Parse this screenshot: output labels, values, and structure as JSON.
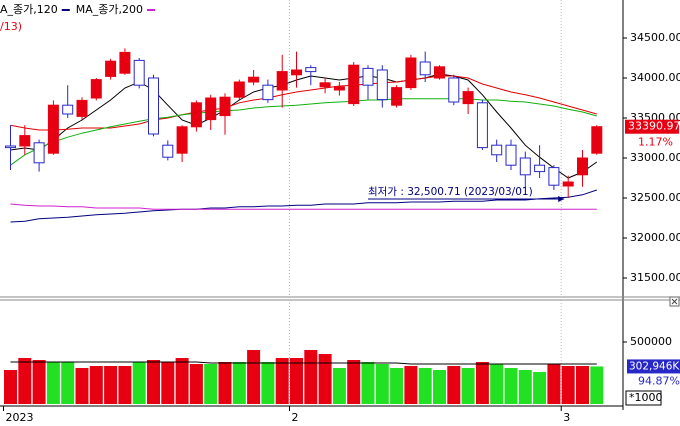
{
  "chart_data": [
    {
      "type": "candlestick",
      "up_color": "#e60012",
      "down_color": "#2828c8",
      "ohlc": {
        "open": [
          33150,
          33150,
          33190,
          33060,
          33660,
          33520,
          33750,
          34020,
          34060,
          34220,
          34000,
          33160,
          33060,
          33390,
          33480,
          33530,
          33760,
          33950,
          33910,
          33850,
          34040,
          34130,
          33890,
          33850,
          33680,
          34120,
          34100,
          33660,
          33880,
          34200,
          34000,
          34000,
          33680,
          33690,
          33160,
          33160,
          33000,
          32910,
          32880,
          32650,
          32790,
          33060
        ],
        "high": [
          33410,
          33410,
          33230,
          33720,
          33910,
          33760,
          34000,
          34240,
          34370,
          34250,
          34040,
          33220,
          33410,
          33720,
          33790,
          33810,
          33980,
          34100,
          33980,
          34290,
          34330,
          34160,
          34000,
          33950,
          34200,
          34160,
          34160,
          33910,
          34290,
          34330,
          34160,
          34040,
          33880,
          33730,
          33230,
          33230,
          33080,
          33160,
          32910,
          32780,
          33100,
          33410
        ],
        "low": [
          32850,
          33040,
          32830,
          33040,
          33500,
          33480,
          33720,
          33980,
          34040,
          33870,
          33270,
          32970,
          32950,
          33330,
          33350,
          33290,
          33730,
          33910,
          33690,
          33630,
          33880,
          33910,
          33810,
          33780,
          33650,
          33730,
          33630,
          33630,
          33850,
          33950,
          33980,
          33660,
          33550,
          33100,
          32950,
          32850,
          32630,
          32750,
          32600,
          32500.71,
          32640,
          33040
        ],
        "close": [
          33130,
          33280,
          32940,
          33660,
          33550,
          33720,
          33980,
          34210,
          34320,
          33910,
          33300,
          33010,
          33390,
          33690,
          33750,
          33760,
          33950,
          34010,
          33730,
          34080,
          34100,
          34080,
          33940,
          33890,
          34160,
          33910,
          33730,
          33880,
          34250,
          34040,
          34140,
          33700,
          33830,
          33130,
          33040,
          32910,
          32790,
          32830,
          32660,
          32700,
          33000,
          33390.97
        ]
      },
      "series": [
        {
          "color": "#000000",
          "values": [
            33100,
            33125,
            33100,
            33225,
            33375,
            33475,
            33600,
            33725,
            33875,
            33950,
            33850,
            33660,
            33475,
            33410,
            33500,
            33600,
            33725,
            33825,
            33875,
            33910,
            33975,
            34025,
            34000,
            33975,
            34000,
            34025,
            34000,
            33950,
            33975,
            34000,
            34050,
            34025,
            33975,
            33790,
            33575,
            33375,
            33160,
            33010,
            32875,
            32750,
            32825,
            32950
          ]
        },
        {
          "color": "#e00000",
          "values": [
            33410,
            33375,
            33350,
            33350,
            33360,
            33375,
            33375,
            33375,
            33400,
            33425,
            33475,
            33500,
            33540,
            33575,
            33600,
            33625,
            33690,
            33725,
            33750,
            33790,
            33825,
            33850,
            33875,
            33900,
            33910,
            33925,
            33940,
            33950,
            33975,
            34000,
            34025,
            34025,
            34000,
            33925,
            33875,
            33825,
            33790,
            33750,
            33700,
            33650,
            33600,
            33550
          ]
        },
        {
          "color": "#10b010",
          "values": [
            32910,
            33040,
            33125,
            33200,
            33260,
            33310,
            33350,
            33390,
            33425,
            33460,
            33490,
            33510,
            33540,
            33560,
            33575,
            33590,
            33600,
            33625,
            33640,
            33650,
            33660,
            33675,
            33690,
            33700,
            33710,
            33725,
            33725,
            33740,
            33740,
            33740,
            33740,
            33740,
            33740,
            33725,
            33725,
            33710,
            33700,
            33675,
            33650,
            33610,
            33575,
            33525
          ]
        },
        {
          "name": "A_종가,120",
          "color": "#000080",
          "values": [
            32200,
            32210,
            32240,
            32250,
            32260,
            32275,
            32290,
            32300,
            32310,
            32325,
            32340,
            32350,
            32360,
            32360,
            32375,
            32375,
            32390,
            32390,
            32400,
            32400,
            32410,
            32410,
            32425,
            32425,
            32425,
            32440,
            32440,
            32440,
            32450,
            32450,
            32450,
            32460,
            32460,
            32460,
            32475,
            32475,
            32475,
            32490,
            32500,
            32510,
            32540,
            32600
          ]
        },
        {
          "name": "MA_종가,200",
          "color": "#d020d0",
          "values": [
            32425,
            32410,
            32400,
            32400,
            32390,
            32390,
            32375,
            32375,
            32375,
            32375,
            32360,
            32360,
            32360,
            32360,
            32360,
            32360,
            32360,
            32360,
            32360,
            32360,
            32360,
            32360,
            32360,
            32360,
            32360,
            32360,
            32360,
            32360,
            32360,
            32360,
            32360,
            32360,
            32360,
            32360,
            32360,
            32360,
            32360,
            32360,
            32360,
            32360,
            32360,
            32360
          ]
        }
      ],
      "period_label": "/13)",
      "change_label": "1.17%",
      "annotation": "최저가 : 32,500.71 (2023/03/01)",
      "ylim": [
        31262.5,
        34975
      ],
      "yticks": [
        {
          "value": 34500,
          "label": "34500.00"
        },
        {
          "value": 34000,
          "label": "34000.00"
        },
        {
          "value": 33500,
          "label": "33500.00"
        },
        {
          "value": 33000,
          "label": "33000.00"
        },
        {
          "value": 32500,
          "label": "32500.00"
        },
        {
          "value": 32000,
          "label": "32000.00"
        },
        {
          "value": 31500,
          "label": "31500.00"
        }
      ]
    },
    {
      "type": "bar",
      "categories": [
        "2023",
        null,
        null,
        null,
        null,
        null,
        null,
        null,
        null,
        null,
        null,
        null,
        null,
        null,
        null,
        null,
        null,
        null,
        null,
        null,
        "2",
        null,
        null,
        null,
        null,
        null,
        null,
        null,
        null,
        null,
        null,
        null,
        null,
        null,
        null,
        null,
        null,
        null,
        null,
        "3",
        null,
        null
      ],
      "values": [
        274190,
        370970,
        354840,
        338710,
        338710,
        290320,
        306450,
        306450,
        306450,
        338710,
        354840,
        338710,
        370970,
        322580,
        322580,
        338710,
        338710,
        435480,
        338710,
        370970,
        370970,
        435480,
        403230,
        290320,
        354840,
        338710,
        322580,
        290320,
        306450,
        290320,
        274190,
        306450,
        290320,
        338710,
        322580,
        290320,
        274190,
        258060,
        322580,
        306450,
        306450,
        302946
      ],
      "value_labels": [
        null,
        null,
        null,
        null,
        null,
        null,
        null,
        null,
        null,
        null,
        null,
        null,
        null,
        null,
        null,
        null,
        null,
        null,
        null,
        null,
        null,
        null,
        null,
        null,
        null,
        null,
        null,
        null,
        null,
        null,
        null,
        null,
        null,
        null,
        null,
        null,
        null,
        null,
        null,
        null,
        null,
        "302,946K"
      ],
      "colors": [
        "#e60012",
        "#e60012",
        "#e60012",
        "#22e022",
        "#22e022",
        "#e60012",
        "#e60012",
        "#e60012",
        "#e60012",
        "#22e022",
        "#e60012",
        "#e60012",
        "#e60012",
        "#e60012",
        "#22e022",
        "#e60012",
        "#22e022",
        "#e60012",
        "#22e022",
        "#e60012",
        "#e60012",
        "#e60012",
        "#e60012",
        "#22e022",
        "#e60012",
        "#22e022",
        "#22e022",
        "#22e022",
        "#e60012",
        "#22e022",
        "#22e022",
        "#e60012",
        "#22e022",
        "#e60012",
        "#22e022",
        "#22e022",
        "#22e022",
        "#22e022",
        "#e60012",
        "#e60012",
        "#e60012",
        "#22e022"
      ],
      "ma": {
        "color": "#000000",
        "values": [
          338710,
          338710,
          338710,
          338710,
          338710,
          338710,
          338710,
          338710,
          338710,
          338710,
          338710,
          338710,
          338710,
          338710,
          330650,
          330650,
          330650,
          330650,
          330650,
          330650,
          330650,
          330650,
          330650,
          330650,
          330650,
          330650,
          330650,
          330650,
          322580,
          322580,
          322580,
          322580,
          322580,
          322580,
          322580,
          322580,
          322580,
          322580,
          322580,
          322580,
          322580,
          322580
        ]
      },
      "ratio_label": "94.87%",
      "unit_label": "*1000",
      "ylim": [
        0,
        838710
      ],
      "yticks": [
        500000
      ]
    }
  ]
}
